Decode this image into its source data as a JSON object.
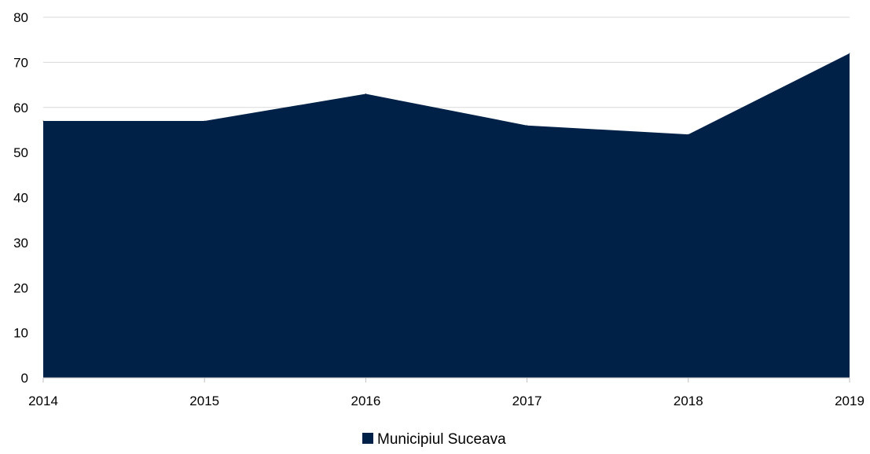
{
  "chart_data": {
    "type": "area",
    "categories": [
      "2014",
      "2015",
      "2016",
      "2017",
      "2018",
      "2019"
    ],
    "series": [
      {
        "name": "Municipiul Suceava",
        "values": [
          57,
          57,
          63,
          56,
          54,
          72
        ]
      }
    ],
    "ylim": [
      0,
      80
    ],
    "yticks": [
      0,
      10,
      20,
      30,
      40,
      50,
      60,
      70,
      80
    ],
    "grid": true,
    "legend": "bottom-center",
    "colors": {
      "area": "#002147",
      "grid": "#d9d9d9",
      "axis": "#bfbfbf"
    }
  }
}
